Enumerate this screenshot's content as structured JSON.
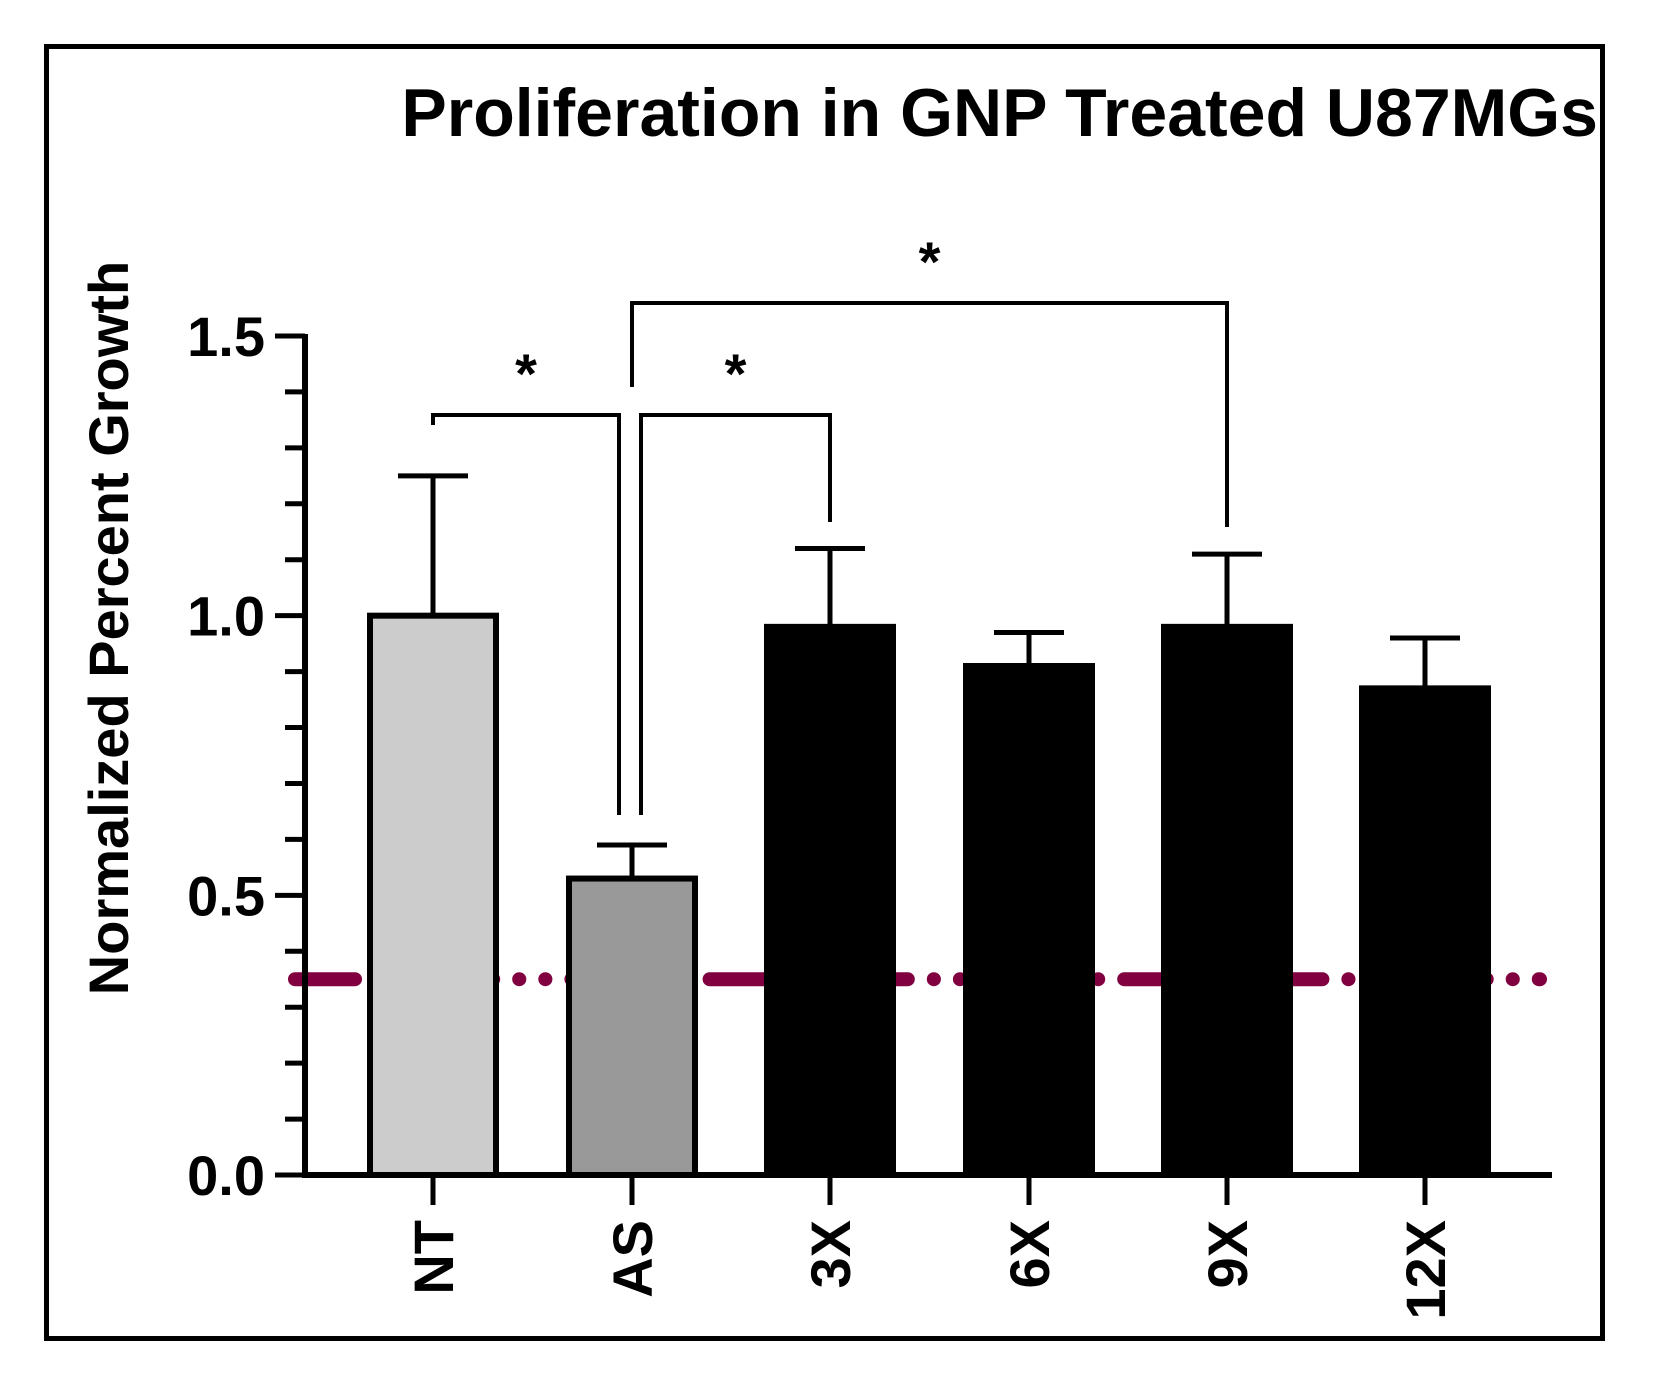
{
  "chart_data": {
    "type": "bar",
    "title": "Proliferation in GNP Treated U87MGs",
    "xlabel": "",
    "ylabel": "Normalized Percent Growth",
    "ylim": [
      0,
      1.5
    ],
    "yticks": [
      "0.0",
      "0.5",
      "1.0",
      "1.5"
    ],
    "categories": [
      "NT",
      "AS",
      "3X",
      "6X",
      "9X",
      "12X"
    ],
    "values": [
      1.0,
      0.53,
      0.98,
      0.91,
      0.98,
      0.87
    ],
    "errors": [
      0.25,
      0.06,
      0.14,
      0.06,
      0.13,
      0.09
    ],
    "bar_colors": [
      "#cccccc",
      "#999999",
      "#000000",
      "#000000",
      "#000000",
      "#000000"
    ],
    "reference_line": {
      "value": 0.35,
      "color": "#800040",
      "style": "dash-dot"
    },
    "significance": [
      {
        "from": "NT",
        "to": "AS",
        "label": "*"
      },
      {
        "from": "AS",
        "to": "3X",
        "label": "*"
      },
      {
        "from": "AS",
        "to": "9X",
        "label": "*"
      }
    ],
    "grid": false
  }
}
